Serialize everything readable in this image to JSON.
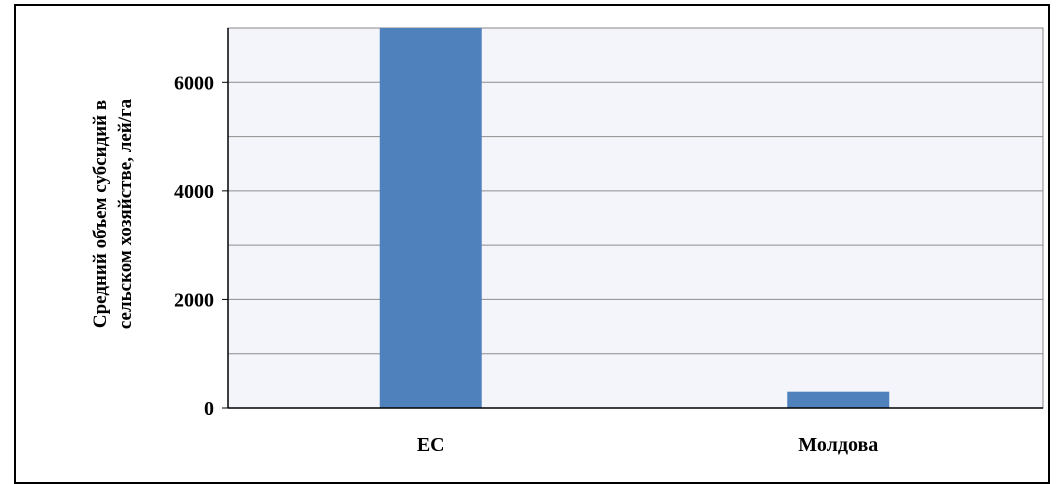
{
  "chart_data": {
    "type": "bar",
    "categories": [
      "ЕС",
      "Молдова"
    ],
    "values": [
      7000,
      300
    ],
    "title": "",
    "xlabel": "",
    "ylabel": [
      "Средний объем субсидий в",
      "сельском хозяйстве, лей/га"
    ],
    "ylim": [
      0,
      7000
    ],
    "yticks": [
      0,
      2000,
      4000,
      6000
    ],
    "minor_gridlines": [
      1000,
      3000,
      5000
    ],
    "grid": true,
    "bar_color": "#4f81bd",
    "plot_background": "#f3f5fa"
  }
}
